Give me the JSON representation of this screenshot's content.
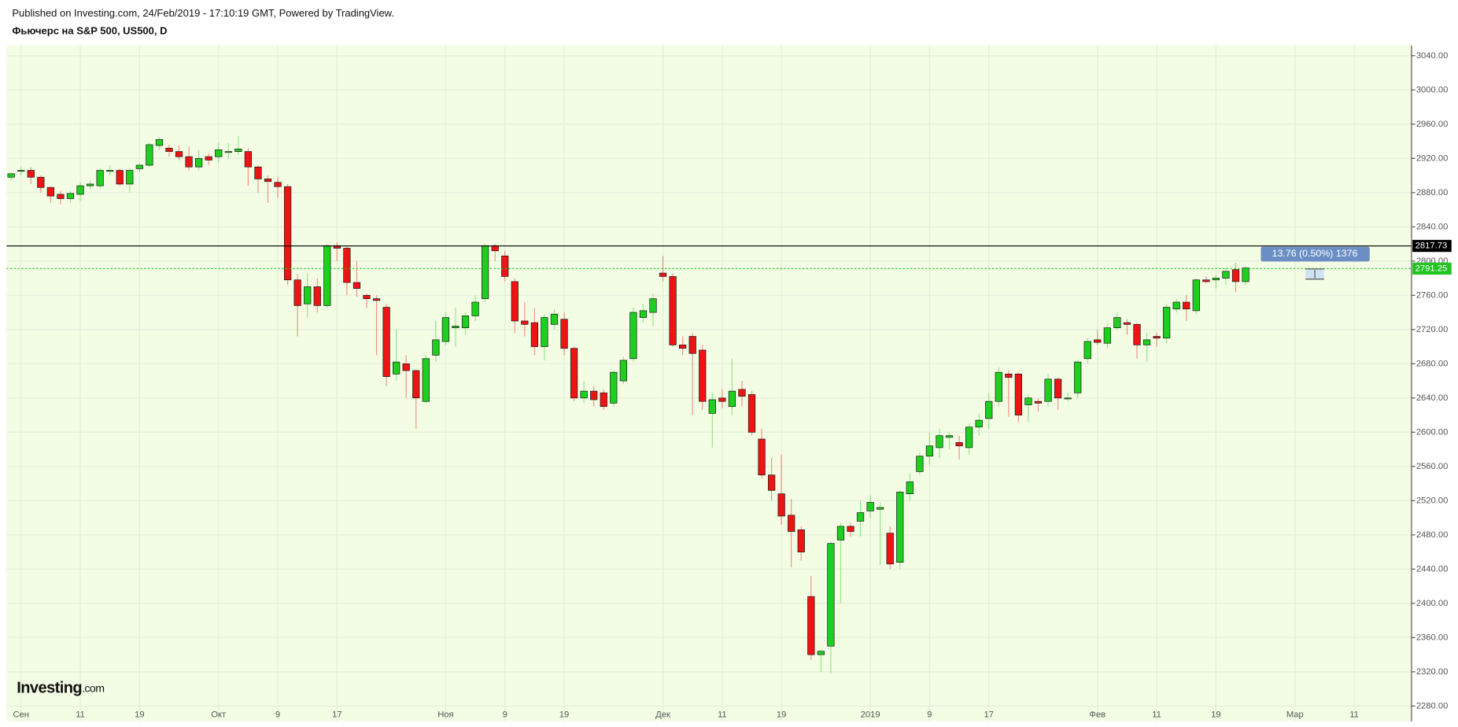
{
  "chart_data": {
    "type": "candlestick",
    "source_note": "Published on Investing.com, 24/Feb/2019 - 17:10:19 GMT, Powered by TradingView.",
    "title": "Фьючерс на S&P 500, US500, D",
    "logo": "Investing",
    "logo_suffix": ".com",
    "up_color": "#1fcf1f",
    "down_color": "#ee1414",
    "open": [
      2898,
      2905,
      2906,
      2898,
      2886,
      2878,
      2873,
      2878,
      2888,
      2888,
      2905,
      2906,
      2890,
      2908,
      2912,
      2935,
      2932,
      2928,
      2922,
      2910,
      2922,
      2922,
      2928,
      2928,
      2928,
      2910,
      2896,
      2892,
      2887,
      2778,
      2750,
      2770,
      2748,
      2818,
      2815,
      2775,
      2760,
      2756,
      2746,
      2668,
      2680,
      2672,
      2636,
      2690,
      2706,
      2722,
      2722,
      2736,
      2756,
      2818,
      2806,
      2776,
      2730,
      2728,
      2700,
      2726,
      2732,
      2698,
      2640,
      2648,
      2646,
      2634,
      2660,
      2686,
      2734,
      2740,
      2786,
      2782,
      2702,
      2712,
      2696,
      2622,
      2640,
      2630,
      2650,
      2644,
      2592,
      2550,
      2528,
      2503,
      2486,
      2408,
      2340,
      2350,
      2474,
      2490,
      2496,
      2508,
      2510,
      2482,
      2448,
      2528,
      2554,
      2572,
      2582,
      2594,
      2588,
      2582,
      2606,
      2616,
      2636,
      2668,
      2668,
      2632,
      2636,
      2636,
      2662,
      2640,
      2646,
      2686,
      2708,
      2704,
      2722,
      2728,
      2726,
      2702,
      2712,
      2710,
      2744,
      2752,
      2742,
      2778,
      2778,
      2780,
      2790,
      2776
    ],
    "high": [
      2904,
      2910,
      2910,
      2900,
      2888,
      2882,
      2882,
      2892,
      2894,
      2908,
      2912,
      2908,
      2908,
      2914,
      2938,
      2945,
      2936,
      2935,
      2934,
      2930,
      2926,
      2938,
      2938,
      2946,
      2932,
      2912,
      2900,
      2898,
      2890,
      2785,
      2786,
      2780,
      2820,
      2822,
      2818,
      2800,
      2762,
      2760,
      2750,
      2720,
      2690,
      2674,
      2690,
      2730,
      2740,
      2746,
      2740,
      2760,
      2820,
      2820,
      2812,
      2780,
      2752,
      2745,
      2738,
      2744,
      2740,
      2700,
      2660,
      2654,
      2650,
      2672,
      2688,
      2746,
      2750,
      2762,
      2806,
      2786,
      2712,
      2716,
      2702,
      2646,
      2650,
      2686,
      2660,
      2648,
      2604,
      2570,
      2574,
      2522,
      2490,
      2432,
      2346,
      2472,
      2494,
      2494,
      2520,
      2526,
      2518,
      2490,
      2532,
      2552,
      2576,
      2600,
      2604,
      2600,
      2596,
      2610,
      2622,
      2646,
      2676,
      2672,
      2670,
      2644,
      2640,
      2668,
      2664,
      2646,
      2684,
      2710,
      2720,
      2726,
      2740,
      2732,
      2728,
      2716,
      2716,
      2750,
      2756,
      2760,
      2780,
      2782,
      2784,
      2792,
      2798,
      2794
    ],
    "low": [
      2894,
      2900,
      2890,
      2880,
      2868,
      2866,
      2868,
      2870,
      2884,
      2884,
      2900,
      2888,
      2880,
      2904,
      2910,
      2930,
      2922,
      2918,
      2906,
      2906,
      2912,
      2915,
      2920,
      2924,
      2888,
      2880,
      2868,
      2874,
      2772,
      2712,
      2734,
      2740,
      2745,
      2800,
      2760,
      2758,
      2745,
      2690,
      2654,
      2660,
      2640,
      2604,
      2634,
      2682,
      2702,
      2700,
      2714,
      2730,
      2752,
      2800,
      2776,
      2716,
      2712,
      2690,
      2684,
      2720,
      2690,
      2636,
      2634,
      2630,
      2626,
      2630,
      2656,
      2682,
      2728,
      2724,
      2776,
      2700,
      2690,
      2620,
      2626,
      2582,
      2628,
      2620,
      2630,
      2596,
      2546,
      2520,
      2492,
      2442,
      2450,
      2334,
      2320,
      2318,
      2400,
      2478,
      2478,
      2500,
      2444,
      2440,
      2440,
      2520,
      2550,
      2562,
      2570,
      2580,
      2568,
      2574,
      2596,
      2604,
      2630,
      2618,
      2612,
      2612,
      2624,
      2630,
      2626,
      2636,
      2640,
      2680,
      2702,
      2698,
      2720,
      2714,
      2686,
      2682,
      2700,
      2704,
      2740,
      2730,
      2738,
      2774,
      2768,
      2772,
      2764,
      2772
    ],
    "close": [
      2902,
      2906,
      2898,
      2886,
      2876,
      2873,
      2879,
      2888,
      2890,
      2906,
      2906,
      2890,
      2906,
      2912,
      2936,
      2942,
      2928,
      2922,
      2910,
      2920,
      2918,
      2930,
      2928,
      2931,
      2910,
      2896,
      2893,
      2887,
      2778,
      2748,
      2770,
      2748,
      2818,
      2815,
      2775,
      2768,
      2756,
      2754,
      2665,
      2682,
      2672,
      2640,
      2686,
      2708,
      2734,
      2724,
      2736,
      2752,
      2818,
      2812,
      2782,
      2730,
      2726,
      2700,
      2734,
      2738,
      2698,
      2640,
      2648,
      2638,
      2630,
      2670,
      2684,
      2740,
      2742,
      2756,
      2782,
      2702,
      2698,
      2692,
      2636,
      2638,
      2636,
      2648,
      2642,
      2600,
      2550,
      2532,
      2502,
      2484,
      2460,
      2340,
      2344,
      2470,
      2490,
      2484,
      2506,
      2518,
      2512,
      2446,
      2530,
      2542,
      2572,
      2584,
      2596,
      2596,
      2584,
      2606,
      2614,
      2636,
      2670,
      2664,
      2620,
      2640,
      2634,
      2662,
      2640,
      2640,
      2682,
      2706,
      2705,
      2722,
      2734,
      2726,
      2702,
      2708,
      2710,
      2746,
      2752,
      2744,
      2778,
      2776,
      2780,
      2788,
      2776,
      2792
    ],
    "xlim": [
      -0.47,
      141.8
    ],
    "xticks": [
      {
        "value": 1,
        "label": "Сен"
      },
      {
        "value": 7,
        "label": "11"
      },
      {
        "value": 13,
        "label": "19"
      },
      {
        "value": 21,
        "label": "Окт"
      },
      {
        "value": 27,
        "label": "9"
      },
      {
        "value": 33,
        "label": "17"
      },
      {
        "value": 44,
        "label": "Ноя"
      },
      {
        "value": 50,
        "label": "9"
      },
      {
        "value": 56,
        "label": "19"
      },
      {
        "value": 66,
        "label": "Дек"
      },
      {
        "value": 72,
        "label": "11"
      },
      {
        "value": 78,
        "label": "19"
      },
      {
        "value": 87,
        "label": "2019"
      },
      {
        "value": 93,
        "label": "9"
      },
      {
        "value": 99,
        "label": "17"
      },
      {
        "value": 110,
        "label": "Фев"
      },
      {
        "value": 116,
        "label": "11"
      },
      {
        "value": 122,
        "label": "19"
      },
      {
        "value": 130,
        "label": "Мар"
      },
      {
        "value": 136,
        "label": "11"
      }
    ],
    "ylim": [
      2262,
      3052
    ],
    "yticks": [
      {
        "value": 2280,
        "label": "2280.00"
      },
      {
        "value": 2320,
        "label": "2320.00"
      },
      {
        "value": 2360,
        "label": "2360.00"
      },
      {
        "value": 2400,
        "label": "2400.00"
      },
      {
        "value": 2440,
        "label": "2440.00"
      },
      {
        "value": 2480,
        "label": "2480.00"
      },
      {
        "value": 2520,
        "label": "2520.00"
      },
      {
        "value": 2560,
        "label": "2560.00"
      },
      {
        "value": 2600,
        "label": "2600.00"
      },
      {
        "value": 2640,
        "label": "2640.00"
      },
      {
        "value": 2680,
        "label": "2680.00"
      },
      {
        "value": 2720,
        "label": "2720.00"
      },
      {
        "value": 2760,
        "label": "2760.00"
      },
      {
        "value": 2800,
        "label": "2800.00"
      },
      {
        "value": 2840,
        "label": "2840.00"
      },
      {
        "value": 2880,
        "label": "2880.00"
      },
      {
        "value": 2920,
        "label": "2920.00"
      },
      {
        "value": 2960,
        "label": "2960.00"
      },
      {
        "value": 3000,
        "label": "3000.00"
      },
      {
        "value": 3040,
        "label": "3040.00"
      }
    ],
    "grid": true,
    "price_lines": [
      {
        "value": 2817.73,
        "label": "2817.73",
        "color": "#000000",
        "dashed": false
      },
      {
        "value": 2791.25,
        "label": "2791.25",
        "color": "#22c422",
        "dashed": true
      }
    ],
    "measure_label": "13.76 (0.50%) 1376"
  }
}
